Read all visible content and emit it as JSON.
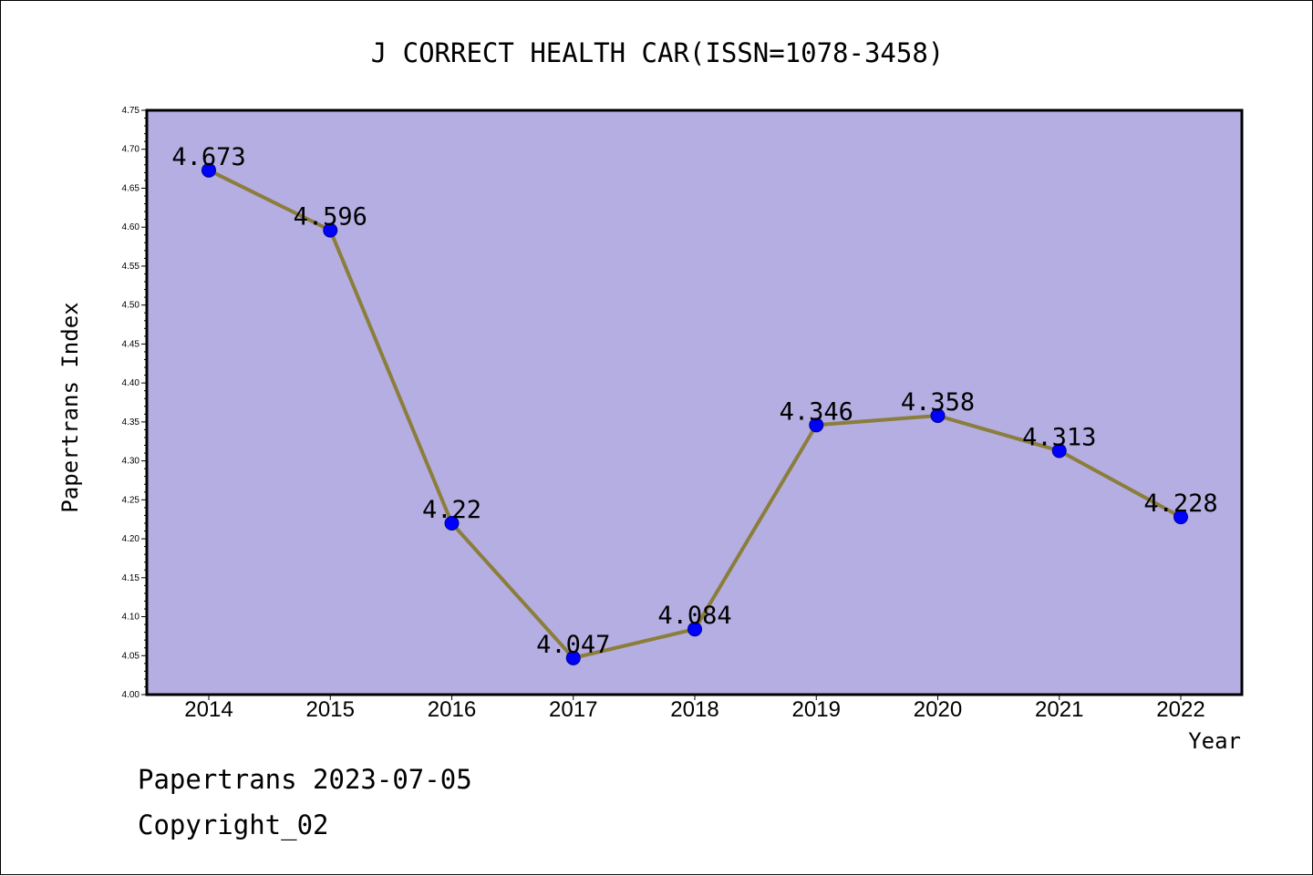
{
  "chart_data": {
    "type": "line",
    "title": "J CORRECT HEALTH CAR(ISSN=1078-3458)",
    "xlabel": "Year",
    "ylabel": "Papertrans Index",
    "categories": [
      "2014",
      "2015",
      "2016",
      "2017",
      "2018",
      "2019",
      "2020",
      "2021",
      "2022"
    ],
    "series": [
      {
        "values": [
          4.673,
          4.596,
          4.22,
          4.047,
          4.084,
          4.346,
          4.358,
          4.313,
          4.228
        ],
        "labels": [
          "4.673",
          "4.596",
          "4.22",
          "4.047",
          "4.084",
          "4.346",
          "4.358",
          "4.313",
          "4.228"
        ]
      }
    ],
    "ylim": [
      4.0,
      4.75
    ],
    "yticks": [
      "4.00",
      "4.05",
      "4.10",
      "4.15",
      "4.20",
      "4.25",
      "4.30",
      "4.35",
      "4.40",
      "4.45",
      "4.50",
      "4.55",
      "4.60",
      "4.65",
      "4.70",
      "4.75"
    ],
    "grid": false,
    "legend": "none"
  },
  "footer": {
    "line1": "Papertrans 2023-07-05",
    "line2": "Copyright_02"
  },
  "colors": {
    "plot_background": "#b4aee2",
    "line": "#8b7d3a",
    "marker": "#0000ff",
    "axis": "#000000"
  }
}
